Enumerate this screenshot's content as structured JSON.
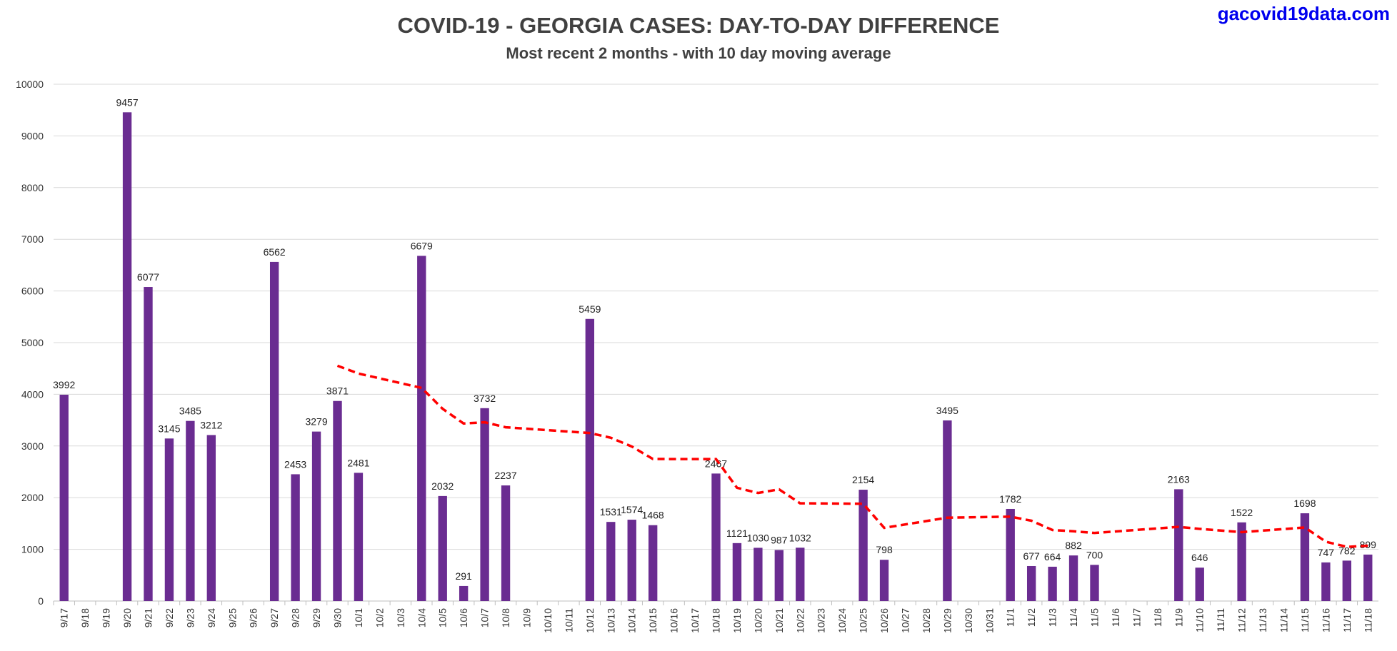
{
  "watermark": "gacovid19data.com",
  "chart_data": {
    "type": "bar",
    "title": "COVID-19 - GEORGIA CASES:  DAY-TO-DAY DIFFERENCE",
    "subtitle": "Most recent 2 months - with 10 day moving average",
    "xlabel": "",
    "ylabel": "",
    "ylim": [
      0,
      10000
    ],
    "yticks": [
      0,
      1000,
      2000,
      3000,
      4000,
      5000,
      6000,
      7000,
      8000,
      9000,
      10000
    ],
    "grid": true,
    "bar_color": "#6a2c91",
    "ma_color": "#ff0000",
    "categories": [
      "9/17",
      "9/18",
      "9/19",
      "9/20",
      "9/21",
      "9/22",
      "9/23",
      "9/24",
      "9/25",
      "9/26",
      "9/27",
      "9/28",
      "9/29",
      "9/30",
      "10/1",
      "10/2",
      "10/3",
      "10/4",
      "10/5",
      "10/6",
      "10/7",
      "10/8",
      "10/9",
      "10/10",
      "10/11",
      "10/12",
      "10/13",
      "10/14",
      "10/15",
      "10/16",
      "10/17",
      "10/18",
      "10/19",
      "10/20",
      "10/21",
      "10/22",
      "10/23",
      "10/24",
      "10/25",
      "10/26",
      "10/27",
      "10/28",
      "10/29",
      "10/30",
      "10/31",
      "11/1",
      "11/2",
      "11/3",
      "11/4",
      "11/5",
      "11/6",
      "11/7",
      "11/8",
      "11/9",
      "11/10",
      "11/11",
      "11/12",
      "11/13",
      "11/14",
      "11/15",
      "11/16",
      "11/17",
      "11/18"
    ],
    "values": [
      3992,
      null,
      null,
      9457,
      6077,
      3145,
      3485,
      3212,
      null,
      null,
      6562,
      2453,
      3279,
      3871,
      2481,
      null,
      null,
      6679,
      2032,
      291,
      3732,
      2237,
      null,
      null,
      null,
      5459,
      1531,
      1574,
      1468,
      null,
      null,
      2467,
      1121,
      1030,
      987,
      1032,
      null,
      null,
      2154,
      798,
      null,
      null,
      3495,
      null,
      null,
      1782,
      677,
      664,
      882,
      700,
      null,
      null,
      null,
      2163,
      646,
      null,
      1522,
      null,
      null,
      1698,
      747,
      782,
      899
    ],
    "moving_average": {
      "style": "dashed",
      "points": [
        [
          "9/30",
          4553
        ],
        [
          "10/1",
          4402
        ],
        [
          "10/4",
          4124
        ],
        [
          "10/5",
          3720
        ],
        [
          "10/6",
          3435
        ],
        [
          "10/7",
          3459
        ],
        [
          "10/8",
          3362
        ],
        [
          "10/12",
          3251
        ],
        [
          "10/13",
          3159
        ],
        [
          "10/14",
          2989
        ],
        [
          "10/15",
          2748
        ],
        [
          "10/18",
          2747
        ],
        [
          "10/19",
          2191
        ],
        [
          "10/20",
          2091
        ],
        [
          "10/21",
          2161
        ],
        [
          "10/22",
          1891
        ],
        [
          "10/25",
          1882
        ],
        [
          "10/26",
          1416
        ],
        [
          "10/29",
          1613
        ],
        [
          "11/1",
          1633
        ],
        [
          "11/2",
          1554
        ],
        [
          "11/3",
          1374
        ],
        [
          "11/4",
          1350
        ],
        [
          "11/5",
          1317
        ],
        [
          "11/9",
          1435
        ],
        [
          "11/10",
          1396
        ],
        [
          "11/12",
          1333
        ],
        [
          "11/15",
          1423
        ],
        [
          "11/16",
          1148
        ],
        [
          "11/17",
          1048
        ],
        [
          "11/18",
          1070
        ]
      ]
    }
  }
}
